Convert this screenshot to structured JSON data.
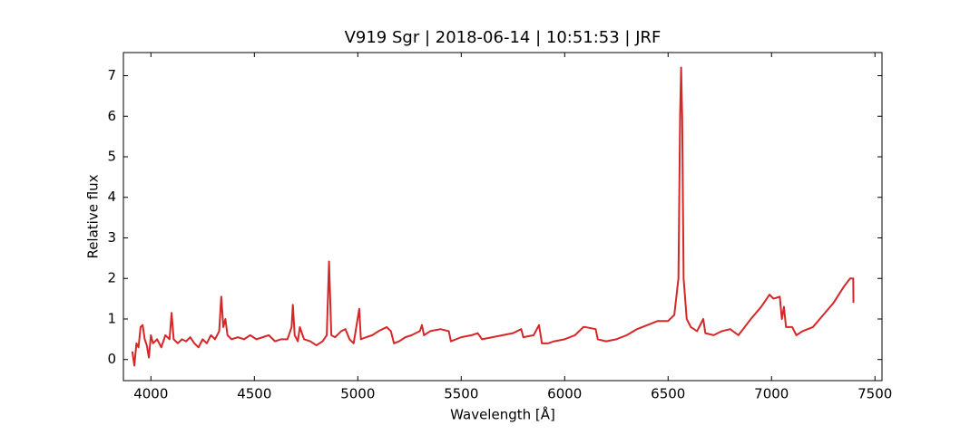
{
  "chart_data": {
    "type": "line",
    "title": "V919 Sgr | 2018-06-14 | 10:51:53 | JRF",
    "xlabel": "Wavelength [Å]",
    "ylabel": "Relative flux",
    "xlim": [
      3867,
      7534
    ],
    "ylim": [
      -0.52,
      7.57
    ],
    "xticks": [
      4000,
      4500,
      5000,
      5500,
      6000,
      6500,
      7000,
      7500
    ],
    "yticks": [
      0,
      1,
      2,
      3,
      4,
      5,
      6,
      7
    ],
    "series": [
      {
        "color": "#d62728",
        "x": [
          3910,
          3920,
          3930,
          3940,
          3950,
          3960,
          3970,
          3980,
          3990,
          4000,
          4010,
          4030,
          4050,
          4070,
          4090,
          4100,
          4110,
          4130,
          4150,
          4170,
          4190,
          4210,
          4230,
          4250,
          4270,
          4290,
          4310,
          4330,
          4340,
          4350,
          4360,
          4370,
          4390,
          4420,
          4450,
          4480,
          4510,
          4540,
          4570,
          4600,
          4630,
          4660,
          4680,
          4686,
          4695,
          4710,
          4720,
          4740,
          4770,
          4800,
          4830,
          4850,
          4861,
          4872,
          4890,
          4920,
          4940,
          4960,
          4980,
          5007,
          5015,
          5040,
          5070,
          5100,
          5140,
          5160,
          5175,
          5200,
          5230,
          5260,
          5300,
          5310,
          5320,
          5350,
          5400,
          5440,
          5450,
          5500,
          5550,
          5580,
          5600,
          5650,
          5700,
          5750,
          5790,
          5800,
          5850,
          5876,
          5890,
          5920,
          5950,
          6000,
          6050,
          6080,
          6090,
          6100,
          6150,
          6160,
          6200,
          6250,
          6300,
          6350,
          6400,
          6450,
          6500,
          6530,
          6550,
          6558,
          6563,
          6568,
          6575,
          6590,
          6610,
          6640,
          6670,
          6680,
          6720,
          6760,
          6800,
          6840,
          6870,
          6900,
          6950,
          6990,
          7010,
          7040,
          7050,
          7060,
          7070,
          7100,
          7120,
          7150,
          7200,
          7250,
          7300,
          7350,
          7380,
          7395,
          7396
        ],
        "values": [
          0.2,
          -0.15,
          0.4,
          0.3,
          0.8,
          0.85,
          0.5,
          0.35,
          0.05,
          0.6,
          0.4,
          0.5,
          0.3,
          0.6,
          0.5,
          1.15,
          0.5,
          0.4,
          0.5,
          0.45,
          0.55,
          0.4,
          0.3,
          0.5,
          0.4,
          0.6,
          0.5,
          0.7,
          1.55,
          0.8,
          1.0,
          0.6,
          0.5,
          0.55,
          0.5,
          0.6,
          0.5,
          0.55,
          0.6,
          0.45,
          0.5,
          0.5,
          0.8,
          1.35,
          0.6,
          0.45,
          0.8,
          0.5,
          0.45,
          0.35,
          0.45,
          0.6,
          2.42,
          0.6,
          0.55,
          0.7,
          0.75,
          0.5,
          0.4,
          1.25,
          0.5,
          0.55,
          0.6,
          0.7,
          0.8,
          0.7,
          0.4,
          0.45,
          0.55,
          0.6,
          0.7,
          0.85,
          0.6,
          0.7,
          0.75,
          0.7,
          0.45,
          0.55,
          0.6,
          0.65,
          0.5,
          0.55,
          0.6,
          0.65,
          0.75,
          0.55,
          0.6,
          0.85,
          0.4,
          0.4,
          0.45,
          0.5,
          0.6,
          0.75,
          0.8,
          0.8,
          0.75,
          0.5,
          0.45,
          0.5,
          0.6,
          0.75,
          0.85,
          0.95,
          0.95,
          1.1,
          2.0,
          6.0,
          7.2,
          6.0,
          2.0,
          1.0,
          0.8,
          0.7,
          1.0,
          0.65,
          0.6,
          0.7,
          0.75,
          0.6,
          0.8,
          1.0,
          1.3,
          1.6,
          1.5,
          1.55,
          1.0,
          1.3,
          0.8,
          0.8,
          0.6,
          0.7,
          0.8,
          1.1,
          1.4,
          1.8,
          2.0,
          2.0,
          1.4
        ]
      }
    ]
  }
}
